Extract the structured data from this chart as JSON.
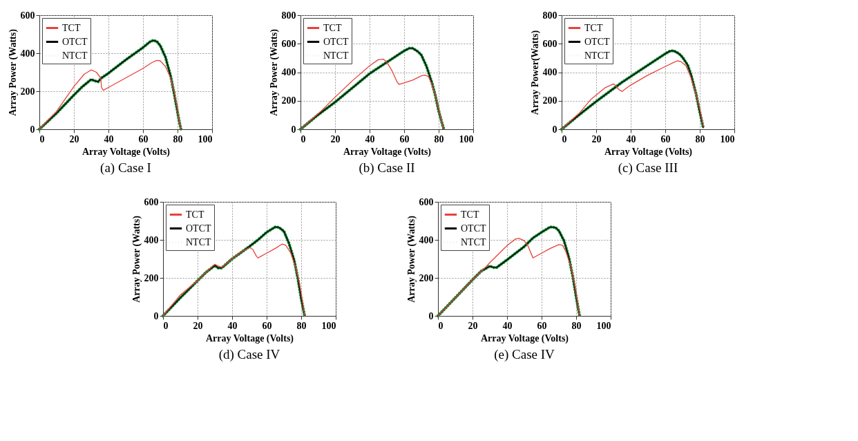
{
  "chart_data": [
    {
      "type": "line",
      "title": "(a) Case I",
      "xlabel": "Array Voltage (Volts)",
      "ylabel": "Array Power (Watts)",
      "xlim": [
        0,
        100
      ],
      "xticks": [
        0,
        20,
        40,
        60,
        80,
        100
      ],
      "ylim": [
        0,
        600
      ],
      "yticks": [
        0,
        200,
        400,
        600
      ],
      "grid": true,
      "legend": "top left",
      "marker": "none",
      "series": [
        {
          "name": "TCT",
          "color": "#e8413c",
          "line_style": "solid",
          "x": [
            0,
            10,
            20,
            26,
            30,
            33,
            35.5,
            36,
            37,
            40,
            50,
            60,
            65,
            68,
            70,
            73,
            76,
            78,
            80,
            81,
            82
          ],
          "values": [
            0,
            95,
            225,
            290,
            312,
            300,
            270,
            220,
            205,
            220,
            270,
            320,
            350,
            362,
            360,
            330,
            270,
            200,
            100,
            40,
            0
          ]
        },
        {
          "name": "OTCT",
          "color": "#000000",
          "line_style": "solid",
          "x": [
            0,
            10,
            20,
            25,
            30,
            32,
            34,
            36,
            40,
            50,
            60,
            64,
            66,
            68,
            70,
            73,
            76,
            78,
            80,
            81,
            82
          ],
          "values": [
            0,
            85,
            180,
            225,
            262,
            255,
            250,
            270,
            295,
            365,
            430,
            460,
            468,
            462,
            440,
            380,
            280,
            190,
            90,
            40,
            0
          ]
        },
        {
          "name": "NTCT",
          "color": "#1a8a3a",
          "line_style": "dotted",
          "x": [
            0,
            10,
            20,
            25,
            30,
            32,
            34,
            36,
            40,
            50,
            60,
            64,
            66,
            68,
            70,
            73,
            76,
            78,
            80,
            81,
            82
          ],
          "values": [
            0,
            85,
            180,
            225,
            262,
            255,
            250,
            270,
            295,
            365,
            430,
            460,
            468,
            462,
            440,
            380,
            280,
            190,
            90,
            40,
            0
          ]
        }
      ]
    },
    {
      "type": "line",
      "title": "(b) Case II",
      "xlabel": "Array Voltage (Volts)",
      "ylabel": "Array Power (Watts)",
      "xlim": [
        0,
        100
      ],
      "xticks": [
        0,
        20,
        40,
        60,
        80,
        100
      ],
      "ylim": [
        0,
        800
      ],
      "yticks": [
        0,
        200,
        400,
        600,
        800
      ],
      "grid": true,
      "legend": "top left",
      "marker": "none",
      "series": [
        {
          "name": "TCT",
          "color": "#e8413c",
          "line_style": "solid",
          "x": [
            0,
            10,
            20,
            30,
            40,
            45,
            48,
            50,
            53,
            56,
            57,
            60,
            65,
            70,
            72,
            74,
            76,
            78,
            80,
            82,
            83
          ],
          "values": [
            0,
            105,
            225,
            340,
            445,
            488,
            492,
            470,
            410,
            330,
            315,
            325,
            345,
            375,
            380,
            370,
            320,
            240,
            140,
            40,
            0
          ]
        },
        {
          "name": "OTCT",
          "color": "#000000",
          "line_style": "solid",
          "x": [
            0,
            10,
            20,
            30,
            40,
            50,
            55,
            60,
            63,
            65,
            68,
            70,
            73,
            76,
            78,
            80,
            82,
            83
          ],
          "values": [
            0,
            100,
            190,
            290,
            390,
            470,
            510,
            550,
            568,
            568,
            545,
            520,
            440,
            330,
            240,
            130,
            40,
            0
          ]
        },
        {
          "name": "NTCT",
          "color": "#1a8a3a",
          "line_style": "dotted",
          "x": [
            0,
            10,
            20,
            30,
            40,
            50,
            55,
            60,
            63,
            65,
            68,
            70,
            73,
            76,
            78,
            80,
            82,
            83
          ],
          "values": [
            0,
            100,
            190,
            290,
            390,
            470,
            510,
            550,
            568,
            568,
            545,
            520,
            440,
            330,
            240,
            130,
            40,
            0
          ]
        }
      ]
    },
    {
      "type": "line",
      "title": "(c) Case III",
      "xlabel": "Array Voltage (Volts)",
      "ylabel": "Array Power(Watts)",
      "xlim": [
        0,
        100
      ],
      "xticks": [
        0,
        20,
        40,
        60,
        80,
        100
      ],
      "ylim": [
        0,
        800
      ],
      "yticks": [
        0,
        200,
        400,
        600,
        800
      ],
      "grid": true,
      "legend": "top left",
      "marker": "none",
      "series": [
        {
          "name": "TCT",
          "color": "#e8413c",
          "line_style": "solid",
          "x": [
            0,
            10,
            17,
            20,
            25,
            30,
            31,
            33,
            35,
            36,
            40,
            50,
            60,
            65,
            67,
            69,
            72,
            75,
            78,
            80,
            82
          ],
          "values": [
            0,
            110,
            210,
            240,
            290,
            318,
            310,
            280,
            265,
            275,
            310,
            380,
            440,
            470,
            480,
            475,
            445,
            360,
            240,
            140,
            20
          ]
        },
        {
          "name": "OTCT",
          "color": "#000000",
          "line_style": "solid",
          "x": [
            0,
            10,
            20,
            30,
            35,
            40,
            50,
            60,
            63,
            65,
            68,
            70,
            73,
            75,
            78,
            80,
            82
          ],
          "values": [
            0,
            100,
            195,
            285,
            330,
            370,
            450,
            530,
            550,
            550,
            530,
            505,
            450,
            380,
            240,
            120,
            10
          ]
        },
        {
          "name": "NTCT",
          "color": "#1a8a3a",
          "line_style": "dotted",
          "x": [
            0,
            10,
            20,
            30,
            35,
            40,
            50,
            60,
            63,
            65,
            68,
            70,
            73,
            75,
            78,
            80,
            82
          ],
          "values": [
            0,
            100,
            195,
            285,
            330,
            370,
            450,
            530,
            550,
            550,
            530,
            505,
            450,
            380,
            240,
            120,
            10
          ]
        }
      ]
    },
    {
      "type": "line",
      "title": "(d) Case IV",
      "xlabel": "Array Voltage (Volts)",
      "ylabel": "Array Power (Watts)",
      "xlim": [
        0,
        100
      ],
      "xticks": [
        0,
        20,
        40,
        60,
        80,
        100
      ],
      "ylim": [
        0,
        600
      ],
      "yticks": [
        0,
        200,
        400,
        600
      ],
      "grid": true,
      "legend": "top left",
      "marker": "none",
      "series": [
        {
          "name": "TCT",
          "color": "#e8413c",
          "line_style": "solid",
          "x": [
            0,
            10,
            20,
            25,
            30,
            32,
            34,
            40,
            45,
            50,
            52,
            54,
            55,
            60,
            65,
            69,
            71,
            74,
            77,
            79,
            81,
            82
          ],
          "values": [
            0,
            110,
            185,
            230,
            272,
            262,
            255,
            300,
            335,
            360,
            350,
            315,
            305,
            330,
            355,
            378,
            372,
            330,
            250,
            170,
            60,
            0
          ]
        },
        {
          "name": "OTCT",
          "color": "#000000",
          "line_style": "solid",
          "x": [
            0,
            10,
            20,
            25,
            30,
            32,
            34,
            40,
            50,
            55,
            60,
            65,
            67,
            70,
            73,
            76,
            78,
            80,
            82
          ],
          "values": [
            0,
            95,
            185,
            230,
            265,
            252,
            252,
            300,
            365,
            400,
            440,
            468,
            466,
            445,
            380,
            290,
            200,
            90,
            0
          ]
        },
        {
          "name": "NTCT",
          "color": "#1a8a3a",
          "line_style": "dotted",
          "x": [
            0,
            10,
            20,
            25,
            30,
            32,
            34,
            40,
            50,
            55,
            60,
            65,
            67,
            70,
            73,
            76,
            78,
            80,
            82
          ],
          "values": [
            0,
            95,
            185,
            230,
            265,
            252,
            252,
            300,
            365,
            400,
            440,
            468,
            466,
            445,
            380,
            290,
            200,
            90,
            0
          ]
        }
      ]
    },
    {
      "type": "line",
      "title": "(e) Case IV",
      "xlabel": "Array Voltage (Volts)",
      "ylabel": "Array Power (Watts)",
      "xlim": [
        0,
        100
      ],
      "xticks": [
        0,
        20,
        40,
        60,
        80,
        100
      ],
      "ylim": [
        0,
        600
      ],
      "yticks": [
        0,
        200,
        400,
        600
      ],
      "grid": true,
      "legend": "top left",
      "marker": "none",
      "series": [
        {
          "name": "TCT",
          "color": "#e8413c",
          "line_style": "solid",
          "x": [
            0,
            10,
            20,
            28,
            30,
            40,
            45,
            47,
            50,
            52,
            55,
            56,
            60,
            65,
            70,
            72,
            74,
            77,
            79,
            81,
            82
          ],
          "values": [
            0,
            95,
            190,
            260,
            280,
            370,
            405,
            408,
            395,
            370,
            305,
            310,
            330,
            355,
            375,
            372,
            340,
            260,
            170,
            60,
            0
          ]
        },
        {
          "name": "OTCT",
          "color": "#000000",
          "line_style": "solid",
          "x": [
            0,
            10,
            20,
            25,
            30,
            32,
            34,
            40,
            50,
            55,
            60,
            65,
            68,
            70,
            73,
            76,
            78,
            80,
            82
          ],
          "values": [
            0,
            95,
            190,
            235,
            262,
            255,
            255,
            295,
            365,
            410,
            440,
            468,
            465,
            448,
            395,
            300,
            210,
            100,
            0
          ]
        },
        {
          "name": "NTCT",
          "color": "#1a8a3a",
          "line_style": "dotted",
          "x": [
            0,
            10,
            20,
            25,
            30,
            32,
            34,
            40,
            50,
            55,
            60,
            65,
            68,
            70,
            73,
            76,
            78,
            80,
            82
          ],
          "values": [
            0,
            95,
            190,
            235,
            262,
            255,
            255,
            295,
            365,
            410,
            440,
            468,
            465,
            448,
            395,
            300,
            210,
            100,
            0
          ]
        }
      ]
    }
  ]
}
